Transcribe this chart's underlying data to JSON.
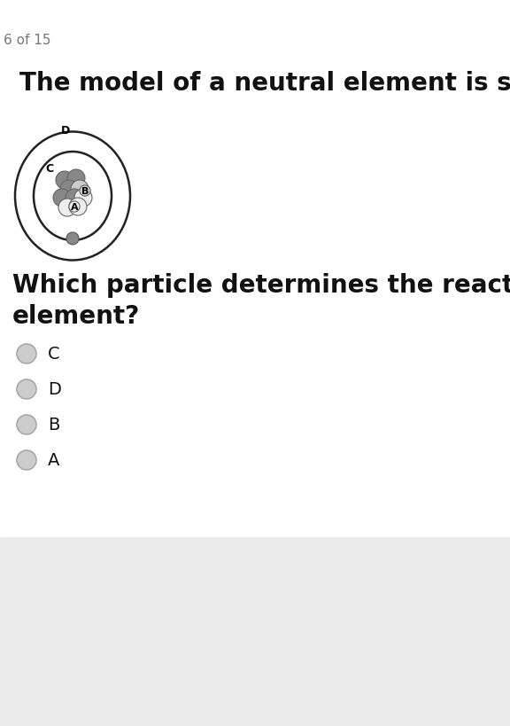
{
  "page_indicator": "6 of 15",
  "title_part1": "The model of a neutral element is shown below.",
  "question": "Which particle determines the reactivity of the\nelement?",
  "background_color": "#ffffff",
  "bottom_bg_color": "#ebebeb",
  "choices": [
    "C",
    "D",
    "B",
    "A"
  ],
  "title_fontsize": 20,
  "question_fontsize": 20,
  "page_fontsize": 11,
  "choice_fontsize": 14,
  "orbit_color": "#222222",
  "nucleus_gray": "#888888",
  "nucleus_light": "#cccccc",
  "nucleus_white": "#eeeeee",
  "electron_color": "#888888"
}
